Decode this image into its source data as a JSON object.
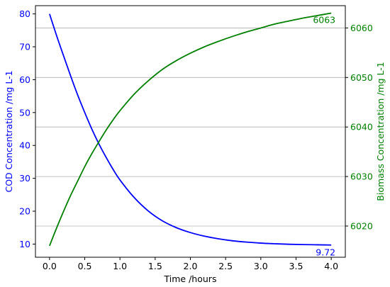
{
  "chart_data": {
    "type": "line",
    "xlabel": "Time /hours",
    "ylabel_left": "COD Concentration /mg L-1",
    "ylabel_right": "Biomass Concentration /mg L-1",
    "xlim": [
      -0.2,
      4.2
    ],
    "ylim_left": [
      6.0,
      82.5
    ],
    "ylim_right": [
      6013.7,
      6064.5
    ],
    "x_ticks": [
      "0.0",
      "0.5",
      "1.0",
      "1.5",
      "2.0",
      "2.5",
      "3.0",
      "3.5",
      "4.0"
    ],
    "x_tick_values": [
      0,
      0.5,
      1.0,
      1.5,
      2.0,
      2.5,
      3.0,
      3.5,
      4.0
    ],
    "y_left_ticks": [
      "10",
      "20",
      "30",
      "40",
      "50",
      "60",
      "70",
      "80"
    ],
    "y_left_tick_values": [
      10,
      20,
      30,
      40,
      50,
      60,
      70,
      80
    ],
    "y_right_ticks": [
      "6020",
      "6030",
      "6040",
      "6050",
      "6060"
    ],
    "y_right_tick_values": [
      6020,
      6030,
      6040,
      6050,
      6060
    ],
    "grid": "horizontal, right axis",
    "series": [
      {
        "name": "COD Concentration /mg L-1",
        "axis": "left",
        "color": "#0000ff",
        "x": [
          0,
          0.1,
          0.2,
          0.3,
          0.4,
          0.5,
          0.6,
          0.7,
          0.8,
          0.9,
          1.0,
          1.2,
          1.4,
          1.6,
          1.8,
          2.0,
          2.2,
          2.4,
          2.6,
          2.8,
          3.0,
          3.2,
          3.4,
          3.6,
          3.8,
          4.0
        ],
        "y": [
          80.0,
          73.4,
          67.2,
          61.1,
          55.3,
          50.0,
          45.0,
          40.5,
          36.5,
          32.8,
          29.5,
          24.2,
          20.1,
          17.1,
          15.0,
          13.5,
          12.4,
          11.6,
          11.0,
          10.6,
          10.3,
          10.1,
          9.95,
          9.85,
          9.78,
          9.72
        ]
      },
      {
        "name": "Biomass Concentration /mg L-1",
        "axis": "right",
        "color": "#008000",
        "x": [
          0,
          0.1,
          0.2,
          0.3,
          0.4,
          0.5,
          0.6,
          0.7,
          0.8,
          0.9,
          1.0,
          1.2,
          1.4,
          1.6,
          1.8,
          2.0,
          2.2,
          2.4,
          2.6,
          2.8,
          3.0,
          3.2,
          3.4,
          3.6,
          3.8,
          4.0
        ],
        "y": [
          6016.0,
          6019.6,
          6023.0,
          6026.2,
          6029.1,
          6032.0,
          6034.6,
          6037.0,
          6039.3,
          6041.4,
          6043.3,
          6046.6,
          6049.3,
          6051.6,
          6053.4,
          6054.9,
          6056.2,
          6057.3,
          6058.3,
          6059.2,
          6060.0,
          6060.8,
          6061.4,
          6062.0,
          6062.5,
          6063.0
        ]
      }
    ],
    "annotations": [
      {
        "text": "6063",
        "x": 4.0,
        "y": 6063,
        "axis": "right",
        "color": "#008000"
      },
      {
        "text": "9.72",
        "x": 4.0,
        "y": 9.72,
        "axis": "left",
        "color": "#0000ff"
      }
    ]
  }
}
